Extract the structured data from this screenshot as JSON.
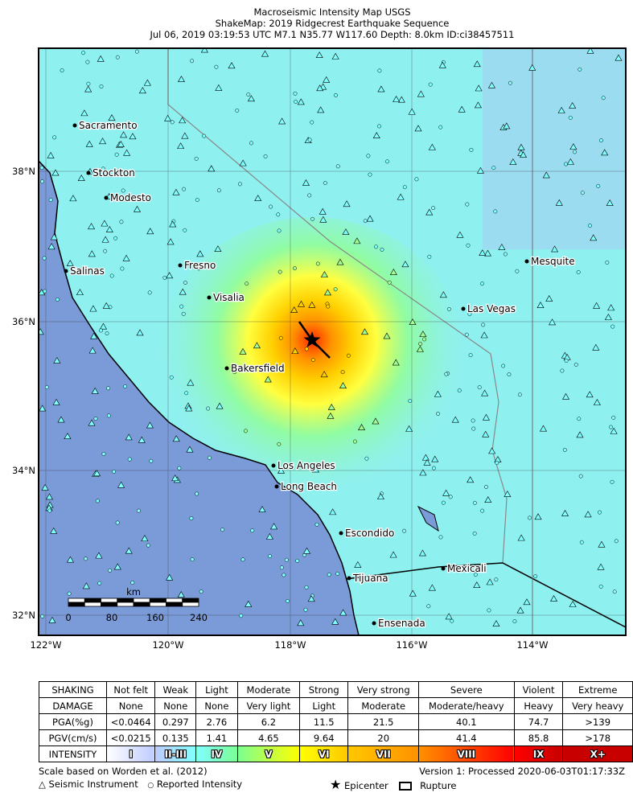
{
  "title": {
    "line1": "Macroseismic Intensity Map USGS",
    "line2": "ShakeMap: 2019 Ridgecrest Earthquake Sequence",
    "line3": "Jul 06, 2019 03:19:53 UTC M7.1 N35.77 W117.60 Depth: 8.0km ID:ci38457511"
  },
  "map": {
    "lat_labels": [
      "38°N",
      "36°N",
      "34°N",
      "32°N"
    ],
    "lon_labels": [
      "122°W",
      "120°W",
      "118°W",
      "116°W",
      "114°W"
    ],
    "cities": [
      "Sacramento",
      "Stockton",
      "Modesto",
      "Fresno",
      "Salinas",
      "Visalia",
      "Bakersfield",
      "Mesquite",
      "Las Vegas",
      "Los Angeles",
      "Long Beach",
      "Escondido",
      "Mexicali",
      "Tijuana",
      "Ensenada"
    ],
    "scale": {
      "unit": "km",
      "ticks": [
        "0",
        "80",
        "160",
        "240"
      ]
    },
    "epicenter_icon": "star-icon",
    "colors": {
      "ocean": "#7b9ad8",
      "land": "#8ff0f0",
      "shaking_peak": "#ff2a00"
    }
  },
  "legend": {
    "rows": [
      {
        "label": "SHAKING",
        "cells": [
          "Not felt",
          "Weak",
          "Light",
          "Moderate",
          "Strong",
          "Very strong",
          "Severe",
          "Violent",
          "Extreme"
        ]
      },
      {
        "label": "DAMAGE",
        "cells": [
          "None",
          "None",
          "None",
          "Very light",
          "Light",
          "Moderate",
          "Moderate/heavy",
          "Heavy",
          "Very heavy"
        ]
      },
      {
        "label": "PGA(%g)",
        "cells": [
          "<0.0464",
          "0.297",
          "2.76",
          "6.2",
          "11.5",
          "21.5",
          "40.1",
          "74.7",
          ">139"
        ]
      },
      {
        "label": "PGV(cm/s)",
        "cells": [
          "<0.0215",
          "0.135",
          "1.41",
          "4.65",
          "9.64",
          "20",
          "41.4",
          "85.8",
          ">178"
        ]
      }
    ],
    "intensity": {
      "label": "INTENSITY",
      "cells": [
        "I",
        "II-III",
        "IV",
        "V",
        "VI",
        "VII",
        "VIII",
        "IX",
        "X+"
      ],
      "colors": [
        "#ffffff",
        "#bfccff",
        "#80ffff",
        "#7aff93",
        "#ffff00",
        "#ffc800",
        "#ff9100",
        "#ff0000",
        "#c80000"
      ]
    },
    "scale_note": "Scale based on Worden et al. (2012)",
    "version": "Version 1: Processed 2020-06-03T01:17:33Z",
    "symbols": {
      "instrument": "Seismic Instrument",
      "reported": "Reported Intensity",
      "epicenter": "Epicenter",
      "rupture": "Rupture"
    }
  }
}
